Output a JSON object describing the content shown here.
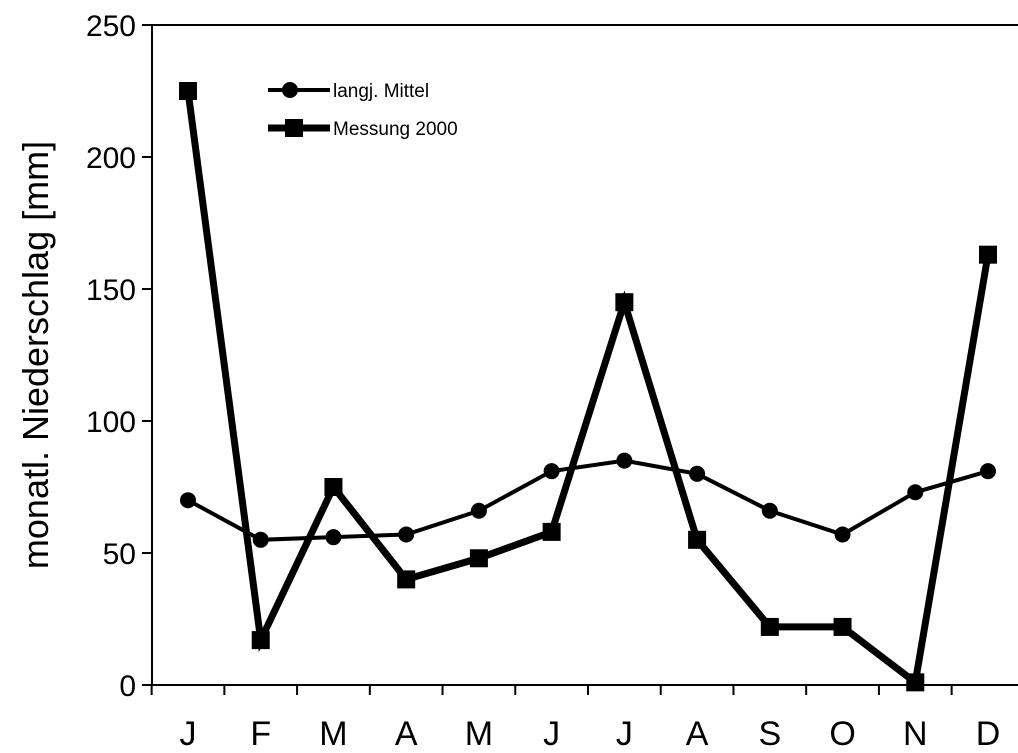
{
  "chart_data": {
    "type": "line",
    "categories": [
      "J",
      "F",
      "M",
      "A",
      "M",
      "J",
      "J",
      "A",
      "S",
      "O",
      "N",
      "D"
    ],
    "series": [
      {
        "name": "langj. Mittel",
        "marker": "circle",
        "values": [
          70,
          55,
          56,
          57,
          66,
          81,
          85,
          80,
          66,
          57,
          73,
          81
        ]
      },
      {
        "name": "Messung 2000",
        "marker": "square",
        "values": [
          225,
          17,
          75,
          40,
          48,
          58,
          145,
          55,
          22,
          22,
          1,
          163
        ]
      }
    ],
    "ylabel": "monatl. Niederschlag [mm]",
    "xlabel": "",
    "ylim": [
      0,
      250
    ],
    "yticks": [
      0,
      50,
      100,
      150,
      200,
      250
    ],
    "grid": false,
    "legend_position": "top-left",
    "colors": {
      "line": "#000000",
      "background": "#ffffff"
    }
  }
}
